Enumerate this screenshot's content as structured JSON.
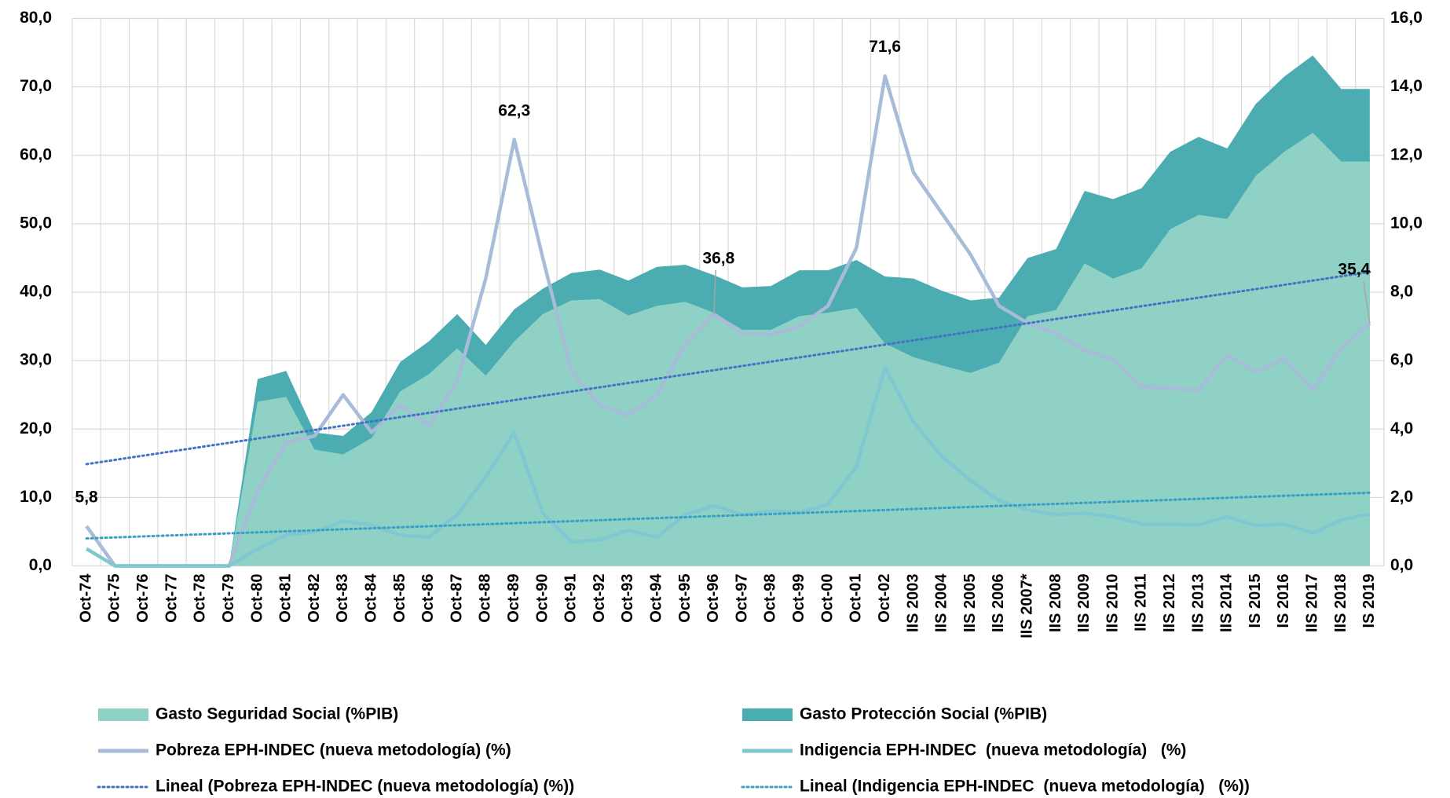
{
  "chart_data": {
    "type": "area-line",
    "categories": [
      "Oct-74",
      "Oct-75",
      "Oct-76",
      "Oct-77",
      "Oct-78",
      "Oct-79",
      "Oct-80",
      "Oct-81",
      "Oct-82",
      "Oct-83",
      "Oct-84",
      "Oct-85",
      "Oct-86",
      "Oct-87",
      "Oct-88",
      "Oct-89",
      "Oct-90",
      "Oct-91",
      "Oct-92",
      "Oct-93",
      "Oct-94",
      "Oct-95",
      "Oct-96",
      "Oct-97",
      "Oct-98",
      "Oct-99",
      "Oct-00",
      "Oct-01",
      "Oct-02",
      "IIS 2003",
      "IIS 2004",
      "IIS 2005",
      "IIS 2006",
      "IIS 2007*",
      "IIS 2008",
      "IIS 2009",
      "IIS 2010",
      "IIS 2011",
      "IIS 2012",
      "IIS 2013",
      "IIS 2014",
      "IS 2015",
      "IS 2016",
      "IIS 2017",
      "IIS 2018",
      "IS 2019"
    ],
    "series": [
      {
        "name": "Gasto Seguridad Social (%PIB)",
        "type": "area",
        "axis": "y2",
        "color": "#8fd1c5",
        "values": [
          0,
          0,
          0,
          0,
          0,
          0,
          4.8,
          4.94,
          3.4,
          3.26,
          3.74,
          5.1,
          5.6,
          6.36,
          5.56,
          6.56,
          7.36,
          7.76,
          7.8,
          7.32,
          7.6,
          7.72,
          7.4,
          6.9,
          6.9,
          7.3,
          7.4,
          7.54,
          6.5,
          6.1,
          5.86,
          5.64,
          5.94,
          7.3,
          7.48,
          8.84,
          8.4,
          8.7,
          9.84,
          10.26,
          10.14,
          11.4,
          12.1,
          12.66,
          11.82,
          11.82
        ]
      },
      {
        "name": "Gasto Protección Social (%PIB)",
        "type": "area",
        "axis": "y2",
        "color": "#4badb1",
        "values": [
          0,
          0,
          0,
          0,
          0,
          0,
          5.46,
          5.7,
          3.9,
          3.8,
          4.5,
          5.96,
          6.56,
          7.36,
          6.46,
          7.5,
          8.1,
          8.56,
          8.66,
          8.34,
          8.74,
          8.8,
          8.5,
          8.14,
          8.18,
          8.64,
          8.64,
          8.94,
          8.46,
          8.4,
          8.04,
          7.76,
          7.84,
          9,
          9.26,
          10.96,
          10.72,
          11.04,
          12.1,
          12.54,
          12.2,
          13.5,
          14.3,
          14.92,
          13.94,
          13.94
        ]
      },
      {
        "name": "Pobreza EPH-INDEC (nueva metodología) (%)",
        "type": "line",
        "color": "#a8bbd8",
        "values": [
          5.8,
          0,
          0,
          0,
          0,
          0,
          11,
          18,
          19,
          25,
          19.5,
          23.5,
          20.5,
          27,
          42,
          62.3,
          45,
          28.5,
          23.5,
          22,
          25,
          32.5,
          36.8,
          34,
          33.8,
          35,
          38,
          46.5,
          71.6,
          57.5,
          51.5,
          45.5,
          38,
          35.5,
          34,
          31.5,
          30.2,
          26.2,
          26,
          25.7,
          30.8,
          28.4,
          30.3,
          25.7,
          31.8,
          35.4
        ],
        "value_labels": [
          "5,8",
          null,
          null,
          null,
          null,
          null,
          null,
          null,
          null,
          null,
          null,
          null,
          null,
          null,
          null,
          "62,3",
          null,
          null,
          null,
          null,
          null,
          null,
          "36,8",
          null,
          null,
          null,
          null,
          null,
          "71,6",
          null,
          null,
          null,
          null,
          null,
          null,
          null,
          null,
          null,
          null,
          null,
          null,
          null,
          null,
          null,
          null,
          "35,4"
        ]
      },
      {
        "name": "Indigencia EPH-INDEC  (nueva metodología)   (%)",
        "type": "line",
        "color": "#7fc7d1",
        "values": [
          2.5,
          0,
          0,
          0,
          0,
          0,
          2.5,
          4.5,
          5,
          6.5,
          6,
          4.5,
          4.2,
          7.5,
          13,
          19.5,
          7.7,
          3.5,
          3.8,
          5.2,
          4.2,
          7.5,
          8.8,
          7.5,
          8,
          7.8,
          9,
          14.5,
          29,
          21,
          16,
          12.5,
          9.5,
          8.2,
          7.5,
          7.7,
          7.2,
          6.1,
          6.1,
          6,
          7.2,
          5.9,
          6.1,
          4.8,
          6.7,
          7.6
        ]
      }
    ],
    "trendlines": [
      {
        "name": "Lineal (Pobreza EPH-INDEC (nueva metodología) (%))",
        "series": "Pobreza EPH-INDEC (nueva metodología) (%)",
        "color": "#4472c4"
      },
      {
        "name": "Lineal (Indigencia EPH-INDEC  (nueva metodología)   (%))",
        "series": "Indigencia EPH-INDEC  (nueva metodología)   (%)",
        "color": "#3a9fc7"
      }
    ],
    "ylim": [
      0,
      80
    ],
    "yticks": [
      {
        "value": 0,
        "label": "0,0"
      },
      {
        "value": 10,
        "label": "10,0"
      },
      {
        "value": 20,
        "label": "20,0"
      },
      {
        "value": 30,
        "label": "30,0"
      },
      {
        "value": 40,
        "label": "40,0"
      },
      {
        "value": 50,
        "label": "50,0"
      },
      {
        "value": 60,
        "label": "60,0"
      },
      {
        "value": 70,
        "label": "70,0"
      },
      {
        "value": 80,
        "label": "80,0"
      }
    ],
    "y2lim": [
      0,
      16
    ],
    "y2ticks": [
      {
        "value": 0,
        "label": "0,0"
      },
      {
        "value": 2,
        "label": "2,0"
      },
      {
        "value": 4,
        "label": "4,0"
      },
      {
        "value": 6,
        "label": "6,0"
      },
      {
        "value": 8,
        "label": "8,0"
      },
      {
        "value": 10,
        "label": "10,0"
      },
      {
        "value": 12,
        "label": "12,0"
      },
      {
        "value": 14,
        "label": "14,0"
      },
      {
        "value": 16,
        "label": "16,0"
      }
    ],
    "grid": true
  }
}
